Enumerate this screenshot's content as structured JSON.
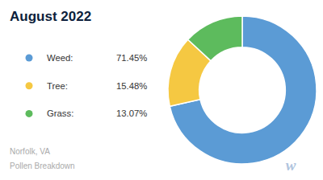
{
  "chart_data": {
    "type": "donut",
    "title": "August 2022",
    "categories": [
      "Weed:",
      "Tree:",
      "Grass:"
    ],
    "values": [
      71.45,
      15.48,
      13.07
    ],
    "value_labels": [
      "71.45%",
      "15.48%",
      "13.07%"
    ],
    "colors": [
      "#5B9BD5",
      "#F5C842",
      "#5DBB5D"
    ],
    "legend": "left",
    "annotations": [
      "Norfolk, VA",
      "Pollen Breakdown",
      "w"
    ]
  }
}
